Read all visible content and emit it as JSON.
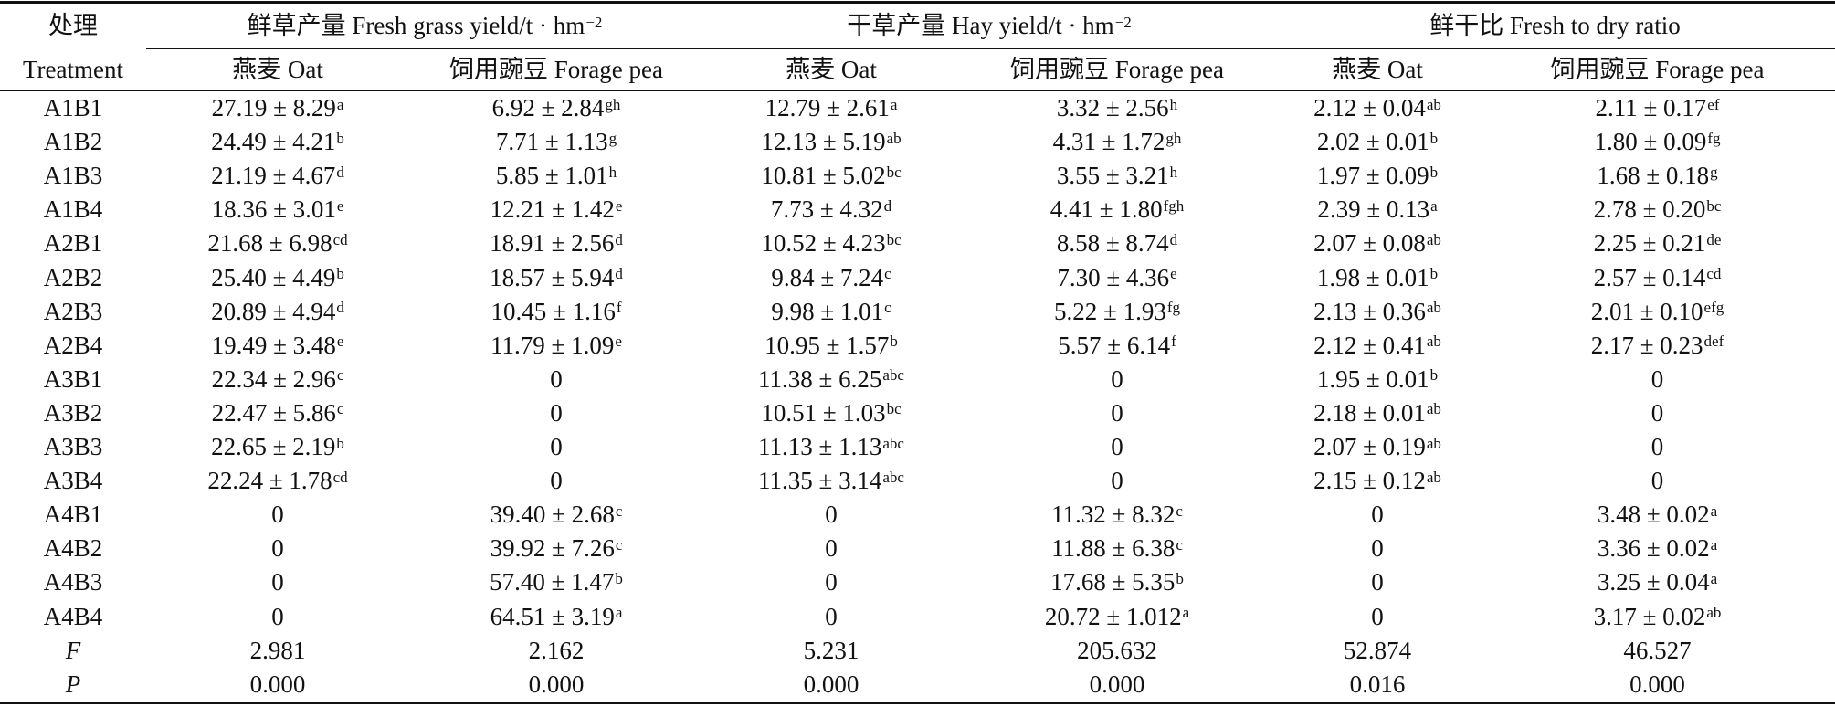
{
  "table": {
    "header": {
      "treatment": [
        "处理",
        "Treatment"
      ],
      "groups": [
        [
          "鲜草产量 Fresh grass yield/t · hm",
          "−2"
        ],
        [
          "干草产量 Hay yield/t · hm",
          "−2"
        ],
        [
          "鲜干比 Fresh to dry ratio"
        ]
      ],
      "subheaders": [
        "燕麦 Oat",
        "饲用豌豆 Forage pea",
        "燕麦 Oat",
        "饲用豌豆 Forage pea",
        "燕麦 Oat",
        "饲用豌豆 Forage pea"
      ]
    },
    "rows": [
      {
        "label": "A1B1",
        "cells": [
          [
            "27.19 ± 8.29",
            "a"
          ],
          [
            "6.92 ± 2.84",
            "gh"
          ],
          [
            "12.79 ± 2.61",
            "a"
          ],
          [
            "3.32 ± 2.56",
            "h"
          ],
          [
            "2.12 ± 0.04",
            "ab"
          ],
          [
            "2.11 ± 0.17",
            "ef"
          ]
        ]
      },
      {
        "label": "A1B2",
        "cells": [
          [
            "24.49 ± 4.21",
            "b"
          ],
          [
            "7.71 ± 1.13",
            "g"
          ],
          [
            "12.13 ± 5.19",
            "ab"
          ],
          [
            "4.31 ± 1.72",
            "gh"
          ],
          [
            "2.02 ± 0.01",
            "b"
          ],
          [
            "1.80 ± 0.09",
            "fg"
          ]
        ]
      },
      {
        "label": "A1B3",
        "cells": [
          [
            "21.19 ± 4.67",
            "d"
          ],
          [
            "5.85 ± 1.01",
            "h"
          ],
          [
            "10.81 ± 5.02",
            "bc"
          ],
          [
            "3.55 ± 3.21",
            "h"
          ],
          [
            "1.97 ± 0.09",
            "b"
          ],
          [
            "1.68 ± 0.18",
            "g"
          ]
        ]
      },
      {
        "label": "A1B4",
        "cells": [
          [
            "18.36 ± 3.01",
            "e"
          ],
          [
            "12.21 ± 1.42",
            "e"
          ],
          [
            "7.73 ± 4.32",
            "d"
          ],
          [
            "4.41 ± 1.80",
            "fgh"
          ],
          [
            "2.39 ± 0.13",
            "a"
          ],
          [
            "2.78 ± 0.20",
            "bc"
          ]
        ]
      },
      {
        "label": "A2B1",
        "cells": [
          [
            "21.68 ± 6.98",
            "cd"
          ],
          [
            "18.91 ± 2.56",
            "d"
          ],
          [
            "10.52 ± 4.23",
            "bc"
          ],
          [
            "8.58 ± 8.74",
            "d"
          ],
          [
            "2.07 ± 0.08",
            "ab"
          ],
          [
            "2.25 ± 0.21",
            "de"
          ]
        ]
      },
      {
        "label": "A2B2",
        "cells": [
          [
            "25.40 ± 4.49",
            "b"
          ],
          [
            "18.57 ± 5.94",
            "d"
          ],
          [
            "9.84 ± 7.24",
            "c"
          ],
          [
            "7.30 ± 4.36",
            "e"
          ],
          [
            "1.98 ± 0.01",
            "b"
          ],
          [
            "2.57 ± 0.14",
            "cd"
          ]
        ]
      },
      {
        "label": "A2B3",
        "cells": [
          [
            "20.89 ± 4.94",
            "d"
          ],
          [
            "10.45 ± 1.16",
            "f"
          ],
          [
            "9.98 ± 1.01",
            "c"
          ],
          [
            "5.22 ± 1.93",
            "fg"
          ],
          [
            "2.13 ± 0.36",
            "ab"
          ],
          [
            "2.01 ± 0.10",
            "efg"
          ]
        ]
      },
      {
        "label": "A2B4",
        "cells": [
          [
            "19.49 ± 3.48",
            "e"
          ],
          [
            "11.79 ± 1.09",
            "e"
          ],
          [
            "10.95 ± 1.57",
            "b"
          ],
          [
            "5.57 ± 6.14",
            "f"
          ],
          [
            "2.12 ± 0.41",
            "ab"
          ],
          [
            "2.17 ± 0.23",
            "def"
          ]
        ]
      },
      {
        "label": "A3B1",
        "cells": [
          [
            "22.34 ± 2.96",
            "c"
          ],
          [
            "0"
          ],
          [
            "11.38 ± 6.25",
            "abc"
          ],
          [
            "0"
          ],
          [
            "1.95 ± 0.01",
            "b"
          ],
          [
            "0"
          ]
        ]
      },
      {
        "label": "A3B2",
        "cells": [
          [
            "22.47 ± 5.86",
            "c"
          ],
          [
            "0"
          ],
          [
            "10.51 ± 1.03",
            "bc"
          ],
          [
            "0"
          ],
          [
            "2.18 ± 0.01",
            "ab"
          ],
          [
            "0"
          ]
        ]
      },
      {
        "label": "A3B3",
        "cells": [
          [
            "22.65 ± 2.19",
            "b"
          ],
          [
            "0"
          ],
          [
            "11.13 ± 1.13",
            "abc"
          ],
          [
            "0"
          ],
          [
            "2.07 ± 0.19",
            "ab"
          ],
          [
            "0"
          ]
        ]
      },
      {
        "label": "A3B4",
        "cells": [
          [
            "22.24 ± 1.78",
            "cd"
          ],
          [
            "0"
          ],
          [
            "11.35 ± 3.14",
            "abc"
          ],
          [
            "0"
          ],
          [
            "2.15 ± 0.12",
            "ab"
          ],
          [
            "0"
          ]
        ]
      },
      {
        "label": "A4B1",
        "cells": [
          [
            "0"
          ],
          [
            "39.40 ± 2.68",
            "c"
          ],
          [
            "0"
          ],
          [
            "11.32 ± 8.32",
            "c"
          ],
          [
            "0"
          ],
          [
            "3.48 ± 0.02",
            "a"
          ]
        ]
      },
      {
        "label": "A4B2",
        "cells": [
          [
            "0"
          ],
          [
            "39.92 ± 7.26",
            "c"
          ],
          [
            "0"
          ],
          [
            "11.88 ± 6.38",
            "c"
          ],
          [
            "0"
          ],
          [
            "3.36 ± 0.02",
            "a"
          ]
        ]
      },
      {
        "label": "A4B3",
        "cells": [
          [
            "0"
          ],
          [
            "57.40 ± 1.47",
            "b"
          ],
          [
            "0"
          ],
          [
            "17.68 ± 5.35",
            "b"
          ],
          [
            "0"
          ],
          [
            "3.25 ± 0.04",
            "a"
          ]
        ]
      },
      {
        "label": "A4B4",
        "cells": [
          [
            "0"
          ],
          [
            "64.51 ± 3.19",
            "a"
          ],
          [
            "0"
          ],
          [
            "20.72 ± 1.012",
            "a"
          ],
          [
            "0"
          ],
          [
            "3.17 ± 0.02",
            "ab"
          ]
        ]
      },
      {
        "label": "F",
        "cells": [
          [
            "2.981"
          ],
          [
            "2.162"
          ],
          [
            "5.231"
          ],
          [
            "205.632"
          ],
          [
            "52.874"
          ],
          [
            "46.527"
          ]
        ]
      },
      {
        "label": "P",
        "cells": [
          [
            "0.000"
          ],
          [
            "0.000"
          ],
          [
            "0.000"
          ],
          [
            "0.000"
          ],
          [
            "0.016"
          ],
          [
            "0.000"
          ]
        ]
      }
    ]
  }
}
